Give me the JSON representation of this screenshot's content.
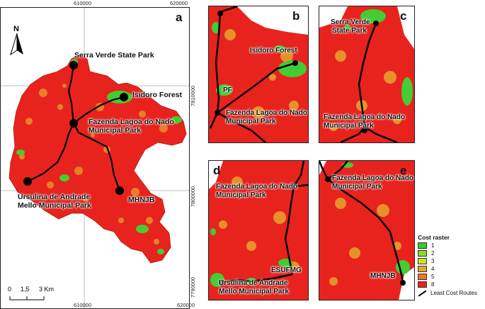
{
  "panels": {
    "a": {
      "letter": "a",
      "labels": {
        "serra": "Serra Verde State Park",
        "isidoro": "Isidoro Forest",
        "fazenda_1": "Fazenda  Lagoa do Nado",
        "fazenda_2": "Municipal Park",
        "ursulina_1": "Ursulina de Andrade",
        "ursulina_2": "Mello Municipal Park",
        "mhnjb": "MHNJB"
      },
      "ticks": {
        "top_1": "610000",
        "top_2": "620000",
        "bottom_1": "610000",
        "bottom_2": "620000",
        "right_1": "7810000",
        "right_2": "7800000",
        "right_3": "7790000"
      },
      "north": "N",
      "scale": {
        "zero": "0",
        "mid": "1,5",
        "end": "3 Km"
      }
    },
    "b": {
      "letter": "b",
      "labels": {
        "isidoro": "Isidoro Forest",
        "pf": "PF",
        "fazenda_1": "Fazenda  Lagoa do Nado",
        "fazenda_2": "Municipal Park"
      }
    },
    "c": {
      "letter": "c",
      "labels": {
        "serra_1": "Serra Verde",
        "serra_2": "State Park",
        "fazenda_1": "Fazenda  Lagoa do Nado",
        "fazenda_2": "Municipal Park"
      }
    },
    "d": {
      "letter": "d",
      "labels": {
        "fazenda_1": "Fazenda  Lagoa do Nado",
        "fazenda_2": "Municipal Park",
        "esufmg": "ESUFMG",
        "ursulina_1": "Ursulina de Andrade",
        "ursulina_2": "Mello Municipal Park"
      }
    },
    "e": {
      "letter": "e",
      "labels": {
        "fazenda_1": "Fazenda  Lagoa do Nado",
        "fazenda_2": "Municipal Park",
        "mhnjb": "MHNJB"
      }
    }
  },
  "legend": {
    "title": "Cost raster",
    "classes": [
      {
        "label": "1",
        "color": "#33cc33"
      },
      {
        "label": "2",
        "color": "#88dd22"
      },
      {
        "label": "3",
        "color": "#cce32a"
      },
      {
        "label": "4",
        "color": "#e6a82a"
      },
      {
        "label": "5",
        "color": "#ee7722"
      },
      {
        "label": "8",
        "color": "#e8231e"
      }
    ],
    "route_label": "Least Cost Routes"
  },
  "colors": {
    "red": "#e8231e",
    "orange": "#e8902a",
    "green": "#44cc33",
    "route": "#000000"
  }
}
